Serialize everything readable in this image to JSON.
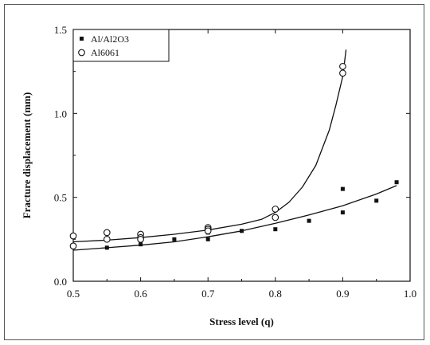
{
  "chart_data": {
    "type": "scatter",
    "title": "",
    "xlabel": "Stress level (q)",
    "ylabel": "Fracture displacement (mm)",
    "xlim": [
      0.5,
      1.0
    ],
    "ylim": [
      0.0,
      1.5
    ],
    "xticks": [
      "0.5",
      "0.6",
      "0.7",
      "0.8",
      "0.9",
      "1.0"
    ],
    "yticks": [
      "0.0",
      "0.5",
      "1.0",
      "1.5"
    ],
    "legend_position": "top-left",
    "series": [
      {
        "name": "Al/Al2O3",
        "marker": "filled-square",
        "color": "#111111",
        "points": [
          {
            "x": 0.55,
            "y": 0.2
          },
          {
            "x": 0.6,
            "y": 0.22
          },
          {
            "x": 0.65,
            "y": 0.25
          },
          {
            "x": 0.7,
            "y": 0.25
          },
          {
            "x": 0.7,
            "y": 0.29
          },
          {
            "x": 0.75,
            "y": 0.3
          },
          {
            "x": 0.8,
            "y": 0.31
          },
          {
            "x": 0.85,
            "y": 0.36
          },
          {
            "x": 0.9,
            "y": 0.41
          },
          {
            "x": 0.9,
            "y": 0.55
          },
          {
            "x": 0.95,
            "y": 0.48
          },
          {
            "x": 0.98,
            "y": 0.59
          }
        ],
        "fit": [
          {
            "x": 0.5,
            "y": 0.185
          },
          {
            "x": 0.55,
            "y": 0.2
          },
          {
            "x": 0.6,
            "y": 0.215
          },
          {
            "x": 0.65,
            "y": 0.235
          },
          {
            "x": 0.7,
            "y": 0.265
          },
          {
            "x": 0.75,
            "y": 0.3
          },
          {
            "x": 0.8,
            "y": 0.345
          },
          {
            "x": 0.85,
            "y": 0.395
          },
          {
            "x": 0.9,
            "y": 0.45
          },
          {
            "x": 0.95,
            "y": 0.52
          },
          {
            "x": 0.98,
            "y": 0.57
          }
        ]
      },
      {
        "name": "Al6061",
        "marker": "open-circle",
        "color": "#111111",
        "points": [
          {
            "x": 0.5,
            "y": 0.27
          },
          {
            "x": 0.5,
            "y": 0.21
          },
          {
            "x": 0.55,
            "y": 0.29
          },
          {
            "x": 0.55,
            "y": 0.25
          },
          {
            "x": 0.6,
            "y": 0.28
          },
          {
            "x": 0.6,
            "y": 0.26
          },
          {
            "x": 0.6,
            "y": 0.25
          },
          {
            "x": 0.7,
            "y": 0.32
          },
          {
            "x": 0.7,
            "y": 0.31
          },
          {
            "x": 0.7,
            "y": 0.3
          },
          {
            "x": 0.8,
            "y": 0.43
          },
          {
            "x": 0.8,
            "y": 0.38
          },
          {
            "x": 0.9,
            "y": 1.28
          },
          {
            "x": 0.9,
            "y": 1.24
          }
        ],
        "fit": [
          {
            "x": 0.5,
            "y": 0.235
          },
          {
            "x": 0.55,
            "y": 0.245
          },
          {
            "x": 0.6,
            "y": 0.26
          },
          {
            "x": 0.65,
            "y": 0.28
          },
          {
            "x": 0.7,
            "y": 0.305
          },
          {
            "x": 0.75,
            "y": 0.34
          },
          {
            "x": 0.78,
            "y": 0.37
          },
          {
            "x": 0.8,
            "y": 0.41
          },
          {
            "x": 0.82,
            "y": 0.47
          },
          {
            "x": 0.84,
            "y": 0.56
          },
          {
            "x": 0.86,
            "y": 0.69
          },
          {
            "x": 0.88,
            "y": 0.9
          },
          {
            "x": 0.89,
            "y": 1.05
          },
          {
            "x": 0.9,
            "y": 1.22
          },
          {
            "x": 0.905,
            "y": 1.38
          }
        ]
      }
    ]
  }
}
